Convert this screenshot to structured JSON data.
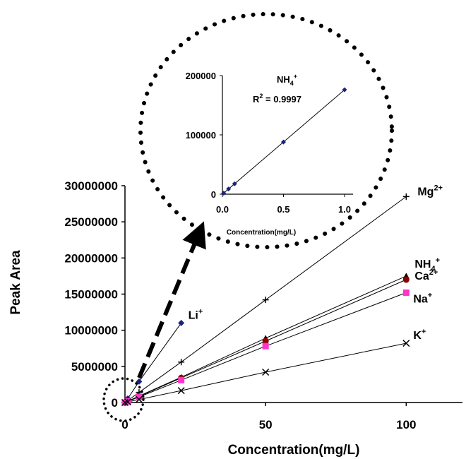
{
  "chart_data": [
    {
      "type": "scatter",
      "xlabel": "Concentration(mg/L)",
      "ylabel": "Peak Area",
      "xlim": [
        0,
        120
      ],
      "ylim": [
        0,
        30000000
      ],
      "x_ticks": [
        "0",
        "50",
        "100"
      ],
      "y_ticks": [
        "0",
        "5000000",
        "10000000",
        "15000000",
        "20000000",
        "25000000",
        "30000000"
      ],
      "grid": false,
      "legend": "none",
      "series": [
        {
          "name": "Li+",
          "base": "Li",
          "sup": "+",
          "color": "#1a237e",
          "marker": "diamond",
          "x": [
            0,
            1,
            5,
            20
          ],
          "y": [
            0,
            550000,
            2900000,
            11000000
          ]
        },
        {
          "name": "Mg2+",
          "base": "Mg",
          "sup": "2+",
          "color": "#000000",
          "marker": "plus",
          "x": [
            0,
            1,
            5,
            20,
            50,
            100
          ],
          "y": [
            0,
            280000,
            1400000,
            5600000,
            14200000,
            28500000
          ]
        },
        {
          "name": "NH4+",
          "base": "NH",
          "sub": "4",
          "sup": "+",
          "color": "#000000",
          "marker": "triangle",
          "x": [
            0,
            1,
            5,
            20,
            50,
            100
          ],
          "y": [
            0,
            175000,
            900000,
            3500000,
            8900000,
            17500000
          ]
        },
        {
          "name": "Ca2+",
          "base": "Ca",
          "sup": "2+",
          "color": "#8b0000",
          "marker": "circle",
          "x": [
            0,
            1,
            5,
            20,
            50,
            100
          ],
          "y": [
            0,
            170000,
            850000,
            3400000,
            8500000,
            17000000
          ]
        },
        {
          "name": "Na+",
          "base": "Na",
          "sup": "+",
          "color": "#ff33cc",
          "marker": "square",
          "x": [
            0,
            1,
            5,
            20,
            50,
            100
          ],
          "y": [
            0,
            155000,
            770000,
            3100000,
            7800000,
            15200000
          ]
        },
        {
          "name": "K+",
          "base": "K",
          "sup": "+",
          "color": "#000000",
          "marker": "cross",
          "x": [
            0,
            1,
            5,
            20,
            50,
            100
          ],
          "y": [
            0,
            85000,
            420000,
            1650000,
            4200000,
            8200000
          ]
        }
      ]
    },
    {
      "type": "scatter",
      "xlabel": "Concentration(mg/L)",
      "xlim": [
        0,
        1
      ],
      "ylim": [
        0,
        200000
      ],
      "x_ticks": [
        "0.0",
        "0.5",
        "1.0"
      ],
      "y_ticks": [
        "0",
        "100000",
        "200000"
      ],
      "grid": false,
      "series": [
        {
          "name": "NH4+",
          "base": "NH",
          "sub": "4",
          "sup": "+",
          "color": "#1a237e",
          "marker": "diamond",
          "x": [
            0.01,
            0.05,
            0.1,
            0.5,
            1.0
          ],
          "y": [
            1800,
            8800,
            17500,
            88000,
            176000
          ]
        }
      ],
      "annotation": {
        "r2_label": "R",
        "r2_sup": "2",
        "r2_value": " = 0.9997"
      }
    }
  ]
}
